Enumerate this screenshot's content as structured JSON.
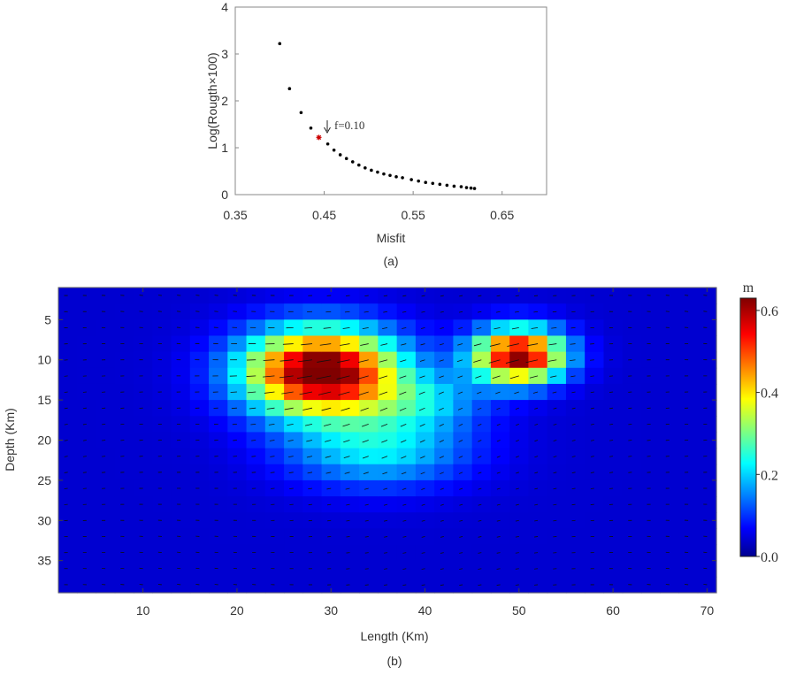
{
  "chart_data": [
    {
      "type": "scatter",
      "panel_label": "(a)",
      "xlabel": "Misfit",
      "ylabel": "Log(Rougth×100)",
      "xlim": [
        0.35,
        0.7
      ],
      "ylim": [
        0,
        4
      ],
      "x_ticks": [
        "0.35",
        "0.45",
        "0.55",
        "0.65"
      ],
      "x_tick_values": [
        0.35,
        0.45,
        0.55,
        0.65
      ],
      "y_ticks": [
        "0",
        "1",
        "2",
        "3",
        "4"
      ],
      "y_tick_values": [
        0,
        1,
        2,
        3,
        4
      ],
      "points": [
        [
          0.4,
          3.22
        ],
        [
          0.411,
          2.26
        ],
        [
          0.424,
          1.75
        ],
        [
          0.435,
          1.42
        ],
        [
          0.454,
          1.08
        ],
        [
          0.461,
          0.95
        ],
        [
          0.468,
          0.85
        ],
        [
          0.475,
          0.77
        ],
        [
          0.482,
          0.7
        ],
        [
          0.489,
          0.63
        ],
        [
          0.496,
          0.57
        ],
        [
          0.503,
          0.52
        ],
        [
          0.51,
          0.48
        ],
        [
          0.517,
          0.44
        ],
        [
          0.524,
          0.41
        ],
        [
          0.531,
          0.38
        ],
        [
          0.538,
          0.36
        ],
        [
          0.548,
          0.32
        ],
        [
          0.556,
          0.29
        ],
        [
          0.564,
          0.26
        ],
        [
          0.572,
          0.24
        ],
        [
          0.58,
          0.22
        ],
        [
          0.588,
          0.2
        ],
        [
          0.596,
          0.18
        ],
        [
          0.604,
          0.17
        ],
        [
          0.61,
          0.15
        ],
        [
          0.615,
          0.14
        ],
        [
          0.619,
          0.13
        ]
      ],
      "highlight": {
        "x": 0.444,
        "y": 1.22,
        "color": "#cc0000"
      },
      "annotation": "f=0.10"
    },
    {
      "type": "heatmap",
      "panel_label": "(b)",
      "xlabel": "Length (Km)",
      "ylabel": "Depth (Km)",
      "xlim": [
        1,
        71
      ],
      "ylim": [
        39,
        1
      ],
      "x_ticks": [
        "10",
        "20",
        "30",
        "40",
        "50",
        "60",
        "70"
      ],
      "x_tick_values": [
        10,
        20,
        30,
        40,
        50,
        60,
        70
      ],
      "y_ticks": [
        "5",
        "10",
        "15",
        "20",
        "25",
        "30",
        "35"
      ],
      "y_tick_values": [
        5,
        10,
        15,
        20,
        25,
        30,
        35
      ],
      "cell_size_km": 2,
      "colorbar": {
        "unit": "m",
        "ticks": [
          "0.0",
          "0.2",
          "0.4",
          "0.6"
        ],
        "tick_values": [
          0,
          0.2,
          0.4,
          0.6
        ],
        "range": [
          0,
          0.63
        ]
      },
      "slip_patches": [
        {
          "cx": 29,
          "cy": 11.5,
          "sx": 8.5,
          "sy": 5.5,
          "peak": 0.63
        },
        {
          "cx": 50,
          "cy": 9.5,
          "sx": 5.0,
          "sy": 3.5,
          "peak": 0.58
        },
        {
          "cx": 35,
          "cy": 21,
          "sx": 10,
          "sy": 5,
          "peak": 0.18
        },
        {
          "cx": 40,
          "cy": 15,
          "sx": 7,
          "sy": 3.5,
          "peak": 0.12
        }
      ],
      "background_slip": 0.05
    }
  ]
}
